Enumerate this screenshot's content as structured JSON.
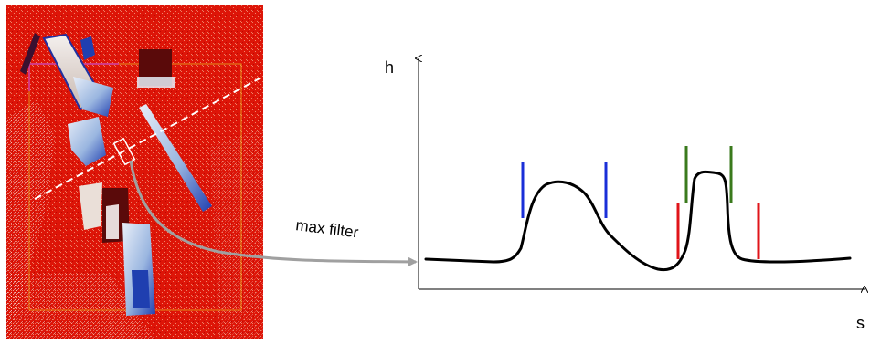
{
  "diagram": {
    "axis_y_label": "h",
    "axis_x_label": "s",
    "arrow_label": "max filter"
  },
  "colors": {
    "heatmap_background": "#dd1508",
    "object_light": "#c8dcf0",
    "object_blue": "#1f3fb0",
    "object_dark": "#5a0a0a",
    "profile_line": "#000000",
    "marker_blue": "#1a2fd8",
    "marker_green": "#3a7a1c",
    "marker_red": "#e0141a",
    "connector_arrow": "#a0a0a0",
    "scan_line": "#ffffff"
  }
}
